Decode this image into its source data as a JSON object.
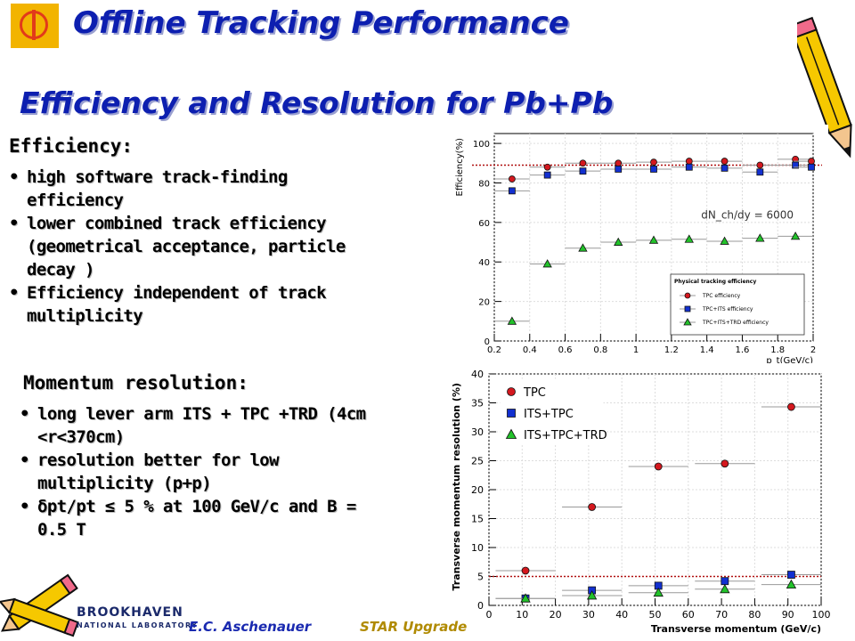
{
  "header": {
    "title": "Offline Tracking Performance",
    "subtitle": "Efficiency and Resolution for Pb+Pb"
  },
  "efficiency_section": {
    "heading": "Efficiency:",
    "bullets": [
      "high software track-finding efficiency",
      "lower combined track efficiency (geometrical acceptance, particle decay )",
      "Efficiency independent of track multiplicity"
    ]
  },
  "momentum_section": {
    "heading": "Momentum resolution:",
    "bullets": [
      "long lever arm ITS + TPC +TRD (4cm <r<370cm)",
      "resolution better for low multiplicity (p+p)",
      "δpt/pt ≤ 5 % at 100 GeV/c and B = 0.5 T"
    ]
  },
  "footer": {
    "author": "E.C. Aschenauer",
    "event": "STAR Upgrade",
    "lab": "BROOKHAVEN",
    "lab_sub": "NATIONAL LABORATORY"
  },
  "colors": {
    "title": "#0d1fb0",
    "tpc": "#d4181e",
    "its_tpc": "#1230d0",
    "its_tpc_trd": "#22c22a",
    "ref_line": "#b01010",
    "footer_author": "#1a2ab0",
    "footer_event": "#b08a00"
  },
  "chart_data": [
    {
      "type": "scatter",
      "xlabel": "p_t(GeV/c)",
      "ylabel": "Efficiency(%)",
      "xlim": [
        0.2,
        2.0
      ],
      "ylim": [
        0,
        105
      ],
      "xticks": [
        "0.2",
        "0.4",
        "0.6",
        "0.8",
        "1",
        "1.2",
        "1.4",
        "1.6",
        "1.8",
        "2"
      ],
      "yticks": [
        "0",
        "20",
        "40",
        "60",
        "80",
        "100"
      ],
      "annotation": "dN_ch/dy = 6000",
      "reference_line": 89,
      "legend_title": "Physical tracking efficiency",
      "legend_position": "bottom-right",
      "series": [
        {
          "name": "TPC efficiency",
          "marker": "circle",
          "x": [
            0.3,
            0.5,
            0.7,
            0.9,
            1.1,
            1.3,
            1.5,
            1.7,
            1.9
          ],
          "y": [
            82,
            88,
            90,
            90,
            90.5,
            91,
            91,
            89,
            92
          ]
        },
        {
          "name": "TPC+ITS efficiency",
          "marker": "square",
          "x": [
            0.3,
            0.5,
            0.7,
            0.9,
            1.1,
            1.3,
            1.5,
            1.7,
            1.9
          ],
          "y": [
            76,
            84,
            86,
            87,
            87,
            88,
            87.5,
            85.5,
            89
          ]
        },
        {
          "name": "TPC+ITS+TRD efficiency",
          "marker": "triangle",
          "x": [
            0.3,
            0.5,
            0.7,
            0.9,
            1.1,
            1.3,
            1.5,
            1.7,
            1.9
          ],
          "y": [
            10,
            39,
            47,
            50,
            51,
            51.5,
            50.5,
            52,
            53
          ]
        },
        {
          "name": "",
          "marker": "circle",
          "x": [
            1.99
          ],
          "y": [
            91
          ]
        },
        {
          "name": "",
          "marker": "square",
          "x": [
            1.99
          ],
          "y": [
            88
          ]
        }
      ]
    },
    {
      "type": "scatter",
      "xlabel": "Transverse momentum (GeV/c)",
      "ylabel": "Transverse momentum resolution (%)",
      "xlim": [
        0,
        100
      ],
      "ylim": [
        0,
        40
      ],
      "xticks": [
        "0",
        "10",
        "20",
        "30",
        "40",
        "50",
        "60",
        "70",
        "80",
        "90",
        "100"
      ],
      "yticks": [
        "0",
        "5",
        "10",
        "15",
        "20",
        "25",
        "30",
        "35",
        "40"
      ],
      "reference_line": 5,
      "legend_position": "top-left",
      "series": [
        {
          "name": "TPC",
          "marker": "circle",
          "x": [
            11,
            31,
            51,
            71,
            91
          ],
          "y": [
            6.0,
            17.0,
            24.0,
            24.5,
            34.3
          ],
          "xerr": 9
        },
        {
          "name": "ITS+TPC",
          "marker": "square",
          "x": [
            11,
            31,
            51,
            71,
            91
          ],
          "y": [
            1.2,
            2.6,
            3.4,
            4.2,
            5.3
          ],
          "xerr": 9
        },
        {
          "name": "ITS+TPC+TRD",
          "marker": "triangle",
          "x": [
            11,
            31,
            51,
            71,
            91
          ],
          "y": [
            1.2,
            1.7,
            2.2,
            2.8,
            3.6
          ],
          "xerr": 9
        }
      ]
    }
  ]
}
